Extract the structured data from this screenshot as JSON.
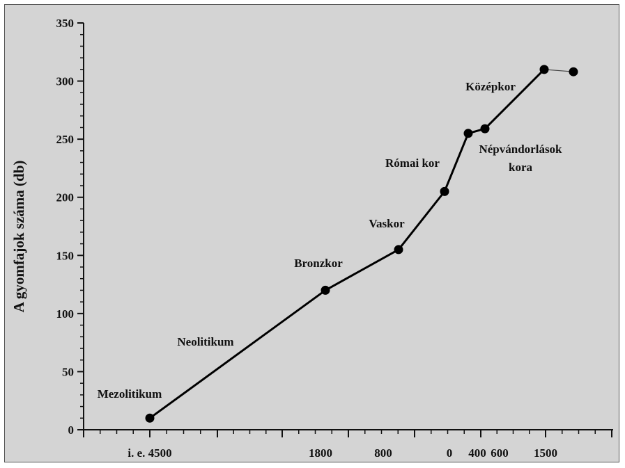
{
  "chart_data": {
    "type": "line",
    "title": "",
    "xlabel": "",
    "ylabel": "A gyomfajok száma (db)",
    "ylim": [
      0,
      350
    ],
    "y_ticks": [
      0,
      50,
      100,
      150,
      200,
      250,
      300,
      350
    ],
    "x_tick_labels": [
      "i. e. 4500",
      "1800",
      "800",
      "0",
      "400",
      "600",
      "1500"
    ],
    "series": [
      {
        "points": [
          {
            "x": "i. e. 4500",
            "y": 10
          },
          {
            "x": "1800",
            "y": 120
          },
          {
            "x": "800",
            "y": 155
          },
          {
            "x": "0",
            "y": 205
          },
          {
            "x": "400",
            "y": 255
          },
          {
            "x": "600",
            "y": 259
          },
          {
            "x": "1500",
            "y": 310
          },
          {
            "x": "",
            "y": 308
          }
        ]
      }
    ],
    "annotations": [
      "Mezolitikum",
      "Neolitikum",
      "Bronzkor",
      "Vaskor",
      "Római kor",
      "Népvándorlások kora",
      "Középkor"
    ],
    "grid": false,
    "legend": "none",
    "colors": {
      "line": "#000000",
      "background": "#d4d4d4",
      "marker": "#000000"
    }
  }
}
